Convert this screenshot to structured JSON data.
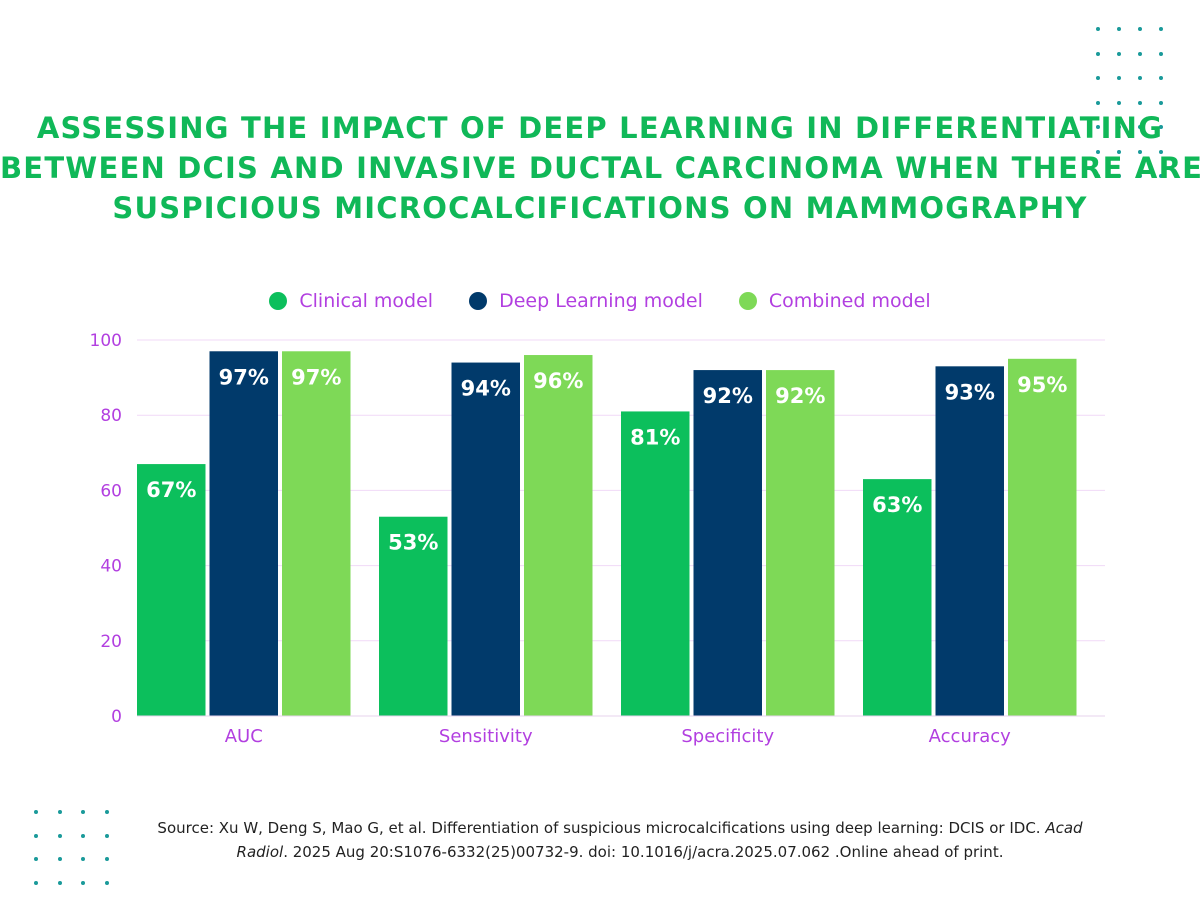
{
  "title_lines": [
    "ASSESSING THE IMPACT OF DEEP LEARNING IN DIFFERENTIATING",
    "BETWEEN DCIS AND INVASIVE DUCTAL CARCINOMA WHEN THERE ARE",
    "SUSPICIOUS MICROCALCIFICATIONS ON MAMMOGRAPHY"
  ],
  "colors": {
    "title": "#10b858",
    "axis_text": "#b23fe0",
    "clinical": "#0cbf5c",
    "deep_learning": "#013a6b",
    "combined": "#7ed957",
    "gridline": "#f1d9f7",
    "dots": "#1a9a9a"
  },
  "chart_data": {
    "type": "bar",
    "title": "",
    "xlabel": "",
    "ylabel": "",
    "categories": [
      "AUC",
      "Sensitivity",
      "Specificity",
      "Accuracy"
    ],
    "series": [
      {
        "name": "Clinical model",
        "values": [
          67,
          53,
          81,
          63
        ],
        "labels": [
          "67%",
          "53%",
          "81%",
          "63%"
        ],
        "color": "#0cbf5c"
      },
      {
        "name": "Deep Learning model",
        "values": [
          97,
          94,
          92,
          93
        ],
        "labels": [
          "97%",
          "94%",
          "92%",
          "93%"
        ],
        "color": "#013a6b"
      },
      {
        "name": "Combined model",
        "values": [
          97,
          96,
          92,
          95
        ],
        "labels": [
          "97%",
          "96%",
          "92%",
          "95%"
        ],
        "color": "#7ed957"
      }
    ],
    "yticks": [
      0,
      20,
      40,
      60,
      80,
      100
    ],
    "ylim": [
      0,
      100
    ],
    "grid": true,
    "legend_position": "top-center"
  },
  "source": {
    "line1_before_italic": "Source: Xu W, Deng S, Mao G, et al. Differentiation of suspicious microcalcifications using deep learning: DCIS or IDC.",
    "line1_italic": "Acad",
    "line2_italic": "Radiol",
    "line2_after_italic": ". 2025 Aug 20:S1076-6332(25)00732-9. doi: 10.1016/j/acra.2025.07.062 .Online ahead of print."
  }
}
